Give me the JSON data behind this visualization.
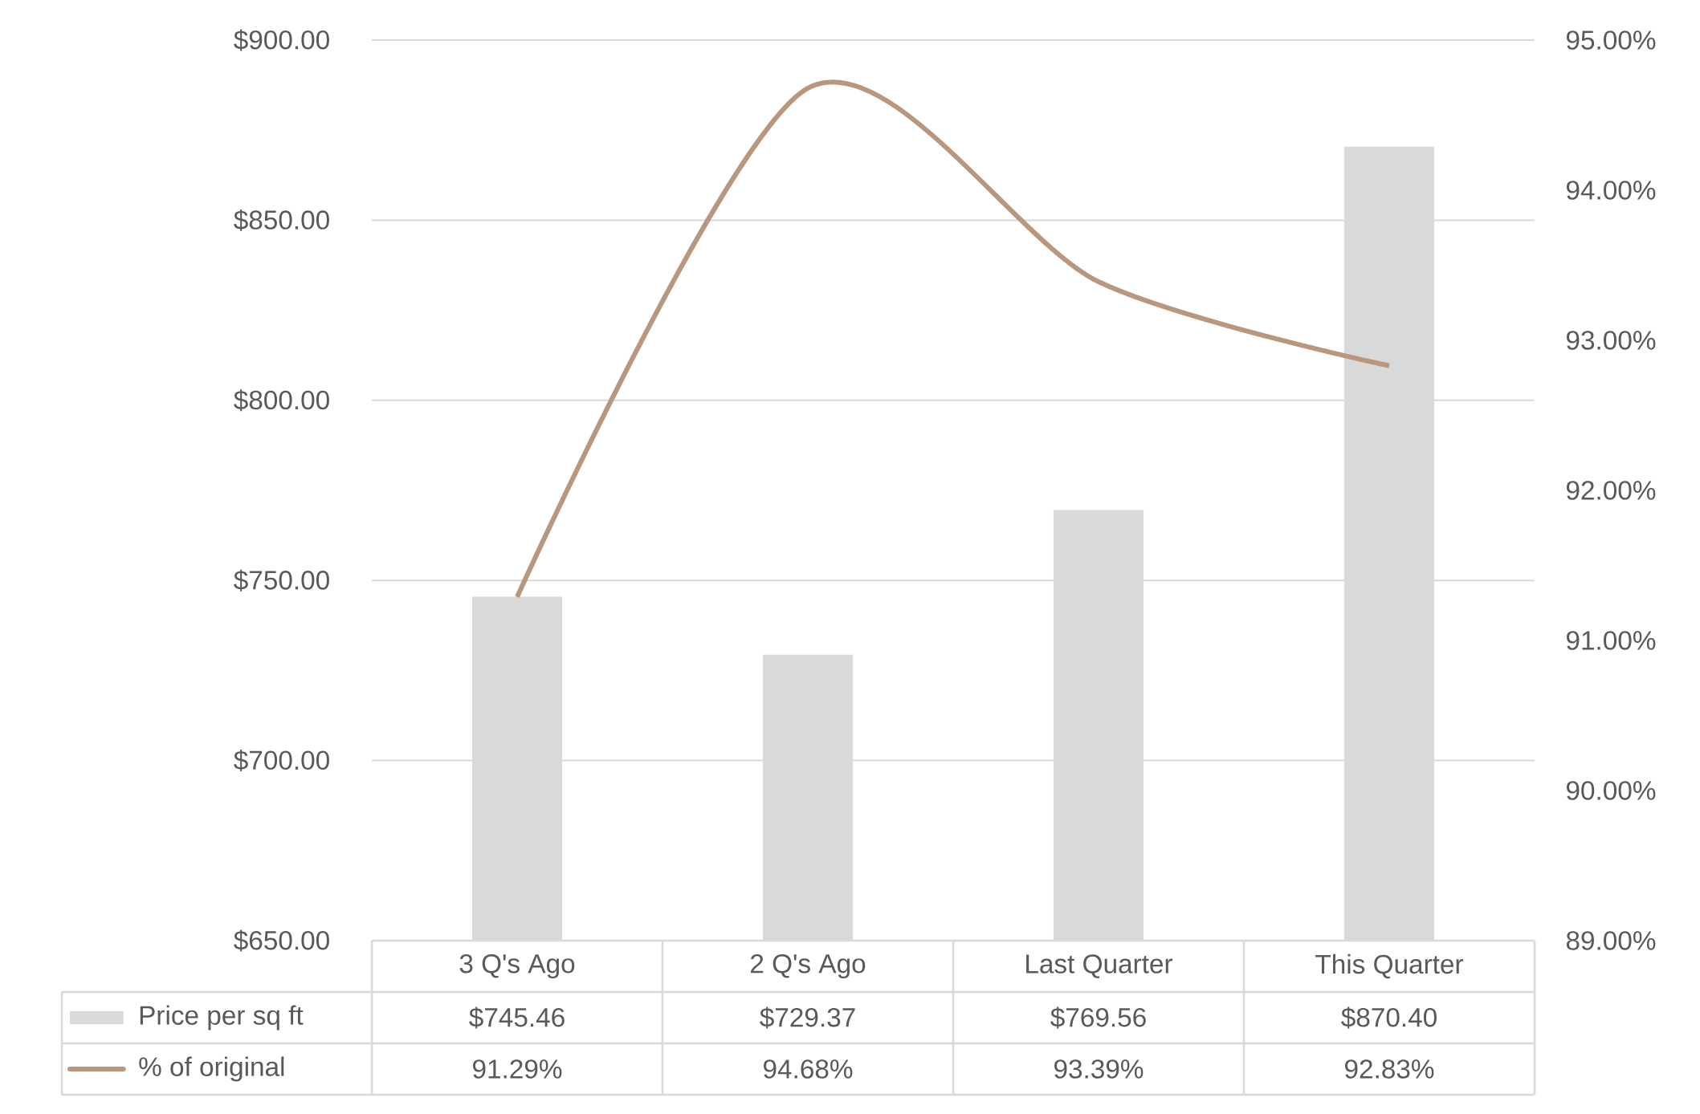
{
  "chart_data": {
    "type": "bar",
    "categories": [
      "3 Q's Ago",
      "2 Q's Ago",
      "Last Quarter",
      "This Quarter"
    ],
    "series": [
      {
        "name": "Price per sq ft",
        "color": "#d9d9d9",
        "values": [
          745.46,
          729.37,
          769.56,
          870.4
        ],
        "value_labels": [
          "$745.46",
          "$729.37",
          "$769.56",
          "$870.40"
        ]
      },
      {
        "name": "% of original",
        "type": "line",
        "axis": "y2",
        "color": "#b8977e",
        "values": [
          91.29,
          94.68,
          93.39,
          92.83
        ],
        "value_labels": [
          "91.29%",
          "94.68%",
          "93.39%",
          "92.83%"
        ]
      }
    ],
    "ylim": [
      650,
      900
    ],
    "yticks": [
      {
        "value": 650,
        "label": "$650.00"
      },
      {
        "value": 700,
        "label": "$700.00"
      },
      {
        "value": 750,
        "label": "$750.00"
      },
      {
        "value": 800,
        "label": "$800.00"
      },
      {
        "value": 850,
        "label": "$850.00"
      },
      {
        "value": 900,
        "label": "$900.00"
      }
    ],
    "y2lim": [
      89,
      95
    ],
    "y2ticks": [
      {
        "value": 89,
        "label": "89.00%"
      },
      {
        "value": 90,
        "label": "90.00%"
      },
      {
        "value": 91,
        "label": "91.00%"
      },
      {
        "value": 92,
        "label": "92.00%"
      },
      {
        "value": 93,
        "label": "93.00%"
      },
      {
        "value": 94,
        "label": "94.00%"
      },
      {
        "value": 95,
        "label": "95.00%"
      }
    ],
    "grid": "y",
    "legend": "bottom",
    "marker": "none",
    "line_style": "solid"
  }
}
